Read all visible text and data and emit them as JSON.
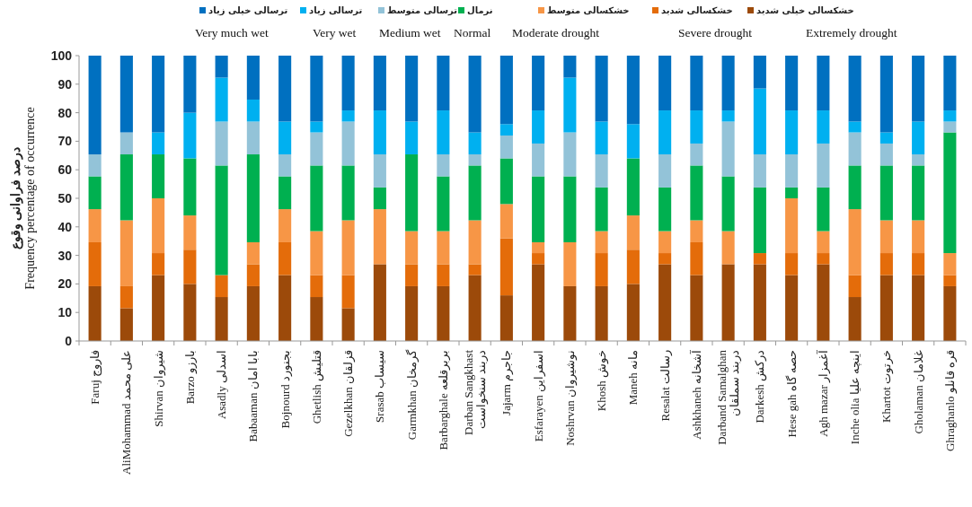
{
  "chart_data": {
    "type": "bar",
    "stacked": true,
    "ylabel": "درصد فراوانی وقوع\nFrequency percentage of occurrence",
    "legend": "top",
    "grid": false,
    "ylim": [
      0,
      100
    ],
    "yticks": [
      0,
      10,
      20,
      30,
      40,
      50,
      60,
      70,
      80,
      90,
      100
    ],
    "categories": [
      "Faruj فاروج",
      "AliMohammad علی محمد",
      "Shirvan شیروان",
      "Barzo بارزو",
      "Asadly اسدلی",
      "Babaaman بابا امان",
      "Bojnourd بجنورد",
      "Ghetlish قتلیش",
      "Gezelkhan قزلقان",
      "Srasab سیساب",
      "Garmkhan گرمخان",
      "Barbarghale بربرقلعه",
      "Darban Sangkhast دربند سنخواست",
      "Jajarm جاجرم",
      "Esfarayen اسفراین",
      "Noshrvan نوشیروان",
      "Khosh خوش",
      "Maneh مانه",
      "Resalat رسالت",
      "Ashkhaneh آشخانه",
      "Darband Samalghan دربند سملقان",
      "Darkesh درکش",
      "Hese gah حصه گاه",
      "Agh mazar آغمزار",
      "Inche olia اینچه علیا",
      "Khartot خرتوت",
      "Gholaman غلامان",
      "Ghraghanlo قره قانلو"
    ],
    "series": [
      {
        "name": "خشکسالی خیلی شدید",
        "color": "#9c4a0a",
        "values": [
          19.2,
          11.5,
          23.1,
          20,
          15.4,
          19.2,
          23.1,
          15.4,
          11.5,
          26.9,
          19.2,
          19.2,
          23.1,
          16,
          26.9,
          19.2,
          19.2,
          20,
          26.9,
          23.1,
          26.9,
          26.9,
          23.1,
          26.9,
          15.4,
          23.1,
          23.1,
          19.2
        ]
      },
      {
        "name": "خشکسالی شدید",
        "color": "#e46c0a",
        "values": [
          15.4,
          7.7,
          7.7,
          12,
          7.7,
          7.7,
          11.5,
          7.7,
          11.6,
          0,
          7.7,
          7.7,
          3.8,
          20,
          3.9,
          0,
          11.6,
          12,
          3.9,
          11.5,
          0,
          3.9,
          7.7,
          3.9,
          7.7,
          7.7,
          7.7,
          3.9
        ]
      },
      {
        "name": "خشکسالی متوسط",
        "color": "#f79646",
        "values": [
          11.6,
          23.1,
          19.2,
          12,
          0,
          7.7,
          11.6,
          15.4,
          19.2,
          19.3,
          11.6,
          11.6,
          15.4,
          12,
          3.8,
          15.4,
          7.7,
          12,
          7.7,
          7.7,
          11.6,
          0,
          19.2,
          7.7,
          23.1,
          11.5,
          11.5,
          7.7
        ]
      },
      {
        "name": "نرمال",
        "color": "#00b050",
        "values": [
          11.5,
          23.1,
          15.4,
          20,
          38.4,
          30.8,
          11.5,
          23,
          19.2,
          7.6,
          26.9,
          19.2,
          19.2,
          16,
          23.1,
          23.1,
          15.3,
          20,
          15.3,
          19.2,
          19.2,
          23,
          3.8,
          15.3,
          15.3,
          19.2,
          19.2,
          42.3
        ]
      },
      {
        "name": "ترسالی متوسط",
        "color": "#93c3d8",
        "values": [
          7.7,
          7.7,
          0,
          0,
          15.4,
          11.5,
          7.7,
          11.6,
          15.4,
          11.6,
          0,
          7.7,
          3.9,
          8,
          11.5,
          15.4,
          11.6,
          0,
          11.6,
          7.7,
          19.2,
          11.6,
          11.6,
          15.4,
          11.6,
          7.7,
          3.9,
          3.8
        ]
      },
      {
        "name": "ترسالی زیاد",
        "color": "#00b0f0",
        "values": [
          0,
          0,
          7.7,
          16,
          15.4,
          7.7,
          11.5,
          3.8,
          3.9,
          15.4,
          11.5,
          15.4,
          7.7,
          4,
          11.6,
          19.2,
          11.5,
          12,
          15.4,
          11.6,
          3.9,
          23.1,
          15.4,
          11.6,
          3.8,
          3.9,
          11.5,
          3.9
        ]
      },
      {
        "name": "ترسالی خیلی زیاد",
        "color": "#0070c0",
        "values": [
          34.6,
          26.9,
          26.9,
          20,
          7.7,
          15.4,
          23.1,
          23.1,
          19.2,
          19.2,
          23.1,
          19.2,
          26.9,
          24,
          19.2,
          7.7,
          23.1,
          24,
          19.2,
          19.2,
          19.2,
          11.5,
          19.2,
          19.2,
          23.1,
          26.9,
          23.1,
          19.2
        ]
      }
    ],
    "annotations": [
      "Very much wet",
      "Very wet",
      "Medium wet",
      "Normal",
      "Moderate drought",
      "Severe drought",
      "Extremely drought"
    ]
  }
}
